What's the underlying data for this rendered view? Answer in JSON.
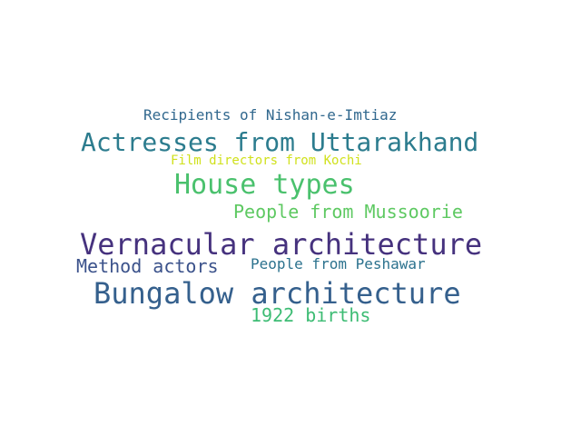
{
  "words": [
    {
      "text": "Recipients of Nishan-e-Imtiaz",
      "color": "#31688e"
    },
    {
      "text": "Actresses from Uttarakhand",
      "color": "#2c7c8e"
    },
    {
      "text": "Film directors from Kochi",
      "color": "#d0e11c"
    },
    {
      "text": "House types",
      "color": "#4ac16d"
    },
    {
      "text": "People from Mussoorie",
      "color": "#5ec962"
    },
    {
      "text": "Vernacular architecture",
      "color": "#46327e"
    },
    {
      "text": "Method actors",
      "color": "#3b528b"
    },
    {
      "text": "People from Peshawar",
      "color": "#2c728e"
    },
    {
      "text": "Bungalow architecture",
      "color": "#35608d"
    },
    {
      "text": "1922 births",
      "color": "#3dbc74"
    }
  ]
}
